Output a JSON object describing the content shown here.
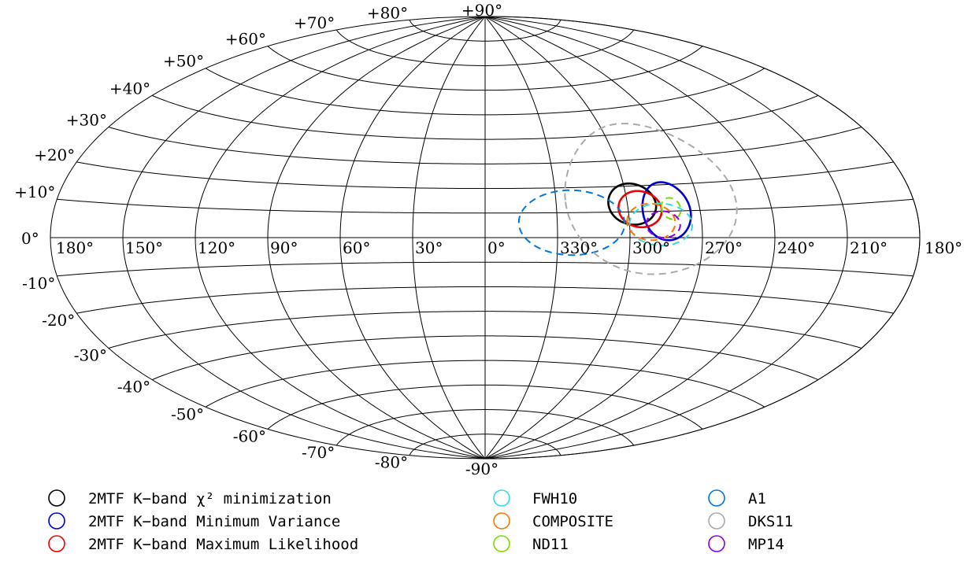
{
  "chart_data": {
    "type": "scatter",
    "projection": "Aitoff",
    "coordinates": "Galactic",
    "lon_tick_labels": [
      "180°",
      "150°",
      "120°",
      "90°",
      "60°",
      "30°",
      "0°",
      "330°",
      "300°",
      "270°",
      "240°",
      "210°",
      "180°"
    ],
    "lat_tick_labels": [
      "+90°",
      "+80°",
      "+70°",
      "+60°",
      "+50°",
      "+40°",
      "+30°",
      "+20°",
      "+10°",
      "0°",
      "-10°",
      "-20°",
      "-30°",
      "-40°",
      "-50°",
      "-60°",
      "-70°",
      "-80°",
      "-90°"
    ],
    "series": [
      {
        "name": "2MTF K−band χ² minimization",
        "color": "#000000",
        "line": "solid",
        "l": 298,
        "b": 13,
        "r_l": 10,
        "r_b": 8
      },
      {
        "name": "2MTF K−band Minimum Variance",
        "color": "#0000cc",
        "line": "solid",
        "l": 284,
        "b": 10,
        "r_l": 10,
        "r_b": 11
      },
      {
        "name": "2MTF K−band Maximum Likelihood",
        "color": "#ee0000",
        "line": "solid",
        "l": 295,
        "b": 11,
        "r_l": 9,
        "r_b": 7
      },
      {
        "name": "FWH10",
        "color": "#33dddd",
        "line": "dashed",
        "l": 287,
        "b": 5,
        "r_l": 13,
        "r_b": 8
      },
      {
        "name": "COMPOSITE",
        "color": "#ff7700",
        "line": "dashed",
        "l": 291,
        "b": 6,
        "r_l": 10,
        "r_b": 7
      },
      {
        "name": "ND11",
        "color": "#77dd00",
        "line": "dashed",
        "l": 282,
        "b": 11,
        "r_l": 4,
        "r_b": 4
      },
      {
        "name": "A1",
        "color": "#0077dd",
        "line": "dashed",
        "l": 324,
        "b": 6,
        "r_l": 22,
        "r_b": 13
      },
      {
        "name": "DKS11",
        "color": "#aaaaaa",
        "line": "dashed",
        "l": 290,
        "b": 15,
        "r_l": 36,
        "r_b": 29
      },
      {
        "name": "MP14",
        "color": "#8800ee",
        "line": "dashed",
        "l": 286,
        "b": 5,
        "r_l": 7,
        "r_b": 5
      }
    ],
    "legend_placement": "bottom"
  }
}
